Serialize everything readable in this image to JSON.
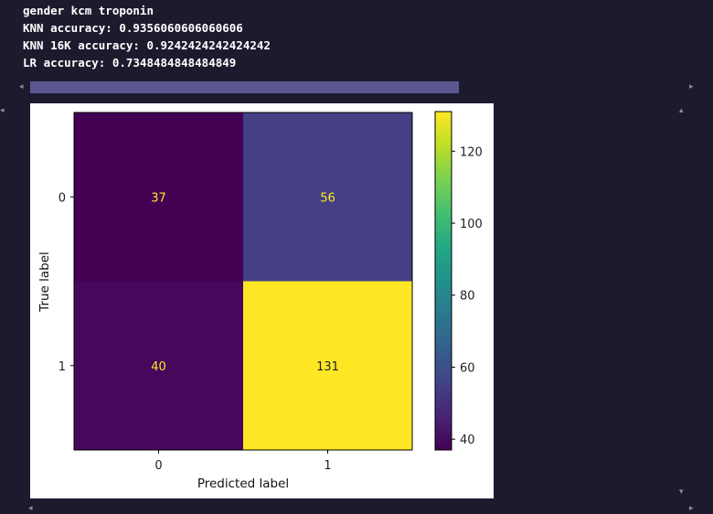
{
  "output": {
    "line1": "gender kcm troponin",
    "line2": "KNN accuracy: 0.9356060606060606",
    "line3": "KNN 16K accuracy: 0.9242424242424242",
    "line4": "LR accuracy: 0.7348484848484849"
  },
  "scroll": {
    "left_arrow": "◂",
    "right_arrow": "▸",
    "up_arrow": "▴",
    "down_arrow": "▾"
  },
  "chart_data": {
    "type": "heatmap",
    "title": "",
    "xlabel": "Predicted label",
    "ylabel": "True label",
    "x_categories": [
      "0",
      "1"
    ],
    "y_categories": [
      "0",
      "1"
    ],
    "matrix": [
      [
        37,
        56
      ],
      [
        40,
        131
      ]
    ],
    "colormap": "viridis",
    "colorbar_range": [
      37,
      131
    ],
    "colorbar_ticks": [
      "40",
      "60",
      "80",
      "100",
      "120"
    ],
    "colors": {
      "c37": "#440154",
      "c40": "#46085c",
      "c56": "#453f85",
      "c131": "#fde725",
      "text_dark": "#fde725",
      "text_light": "#222222"
    }
  }
}
